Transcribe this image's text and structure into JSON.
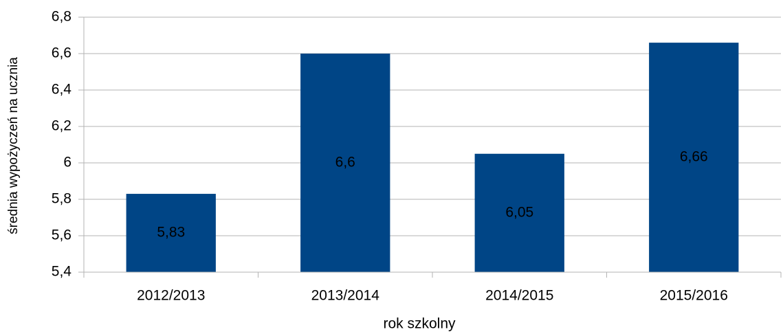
{
  "chart_data": {
    "type": "bar",
    "x_label": "rok szkolny",
    "y_label": "średnia wypożyczeń na ucznia",
    "categories": [
      "2012/2013",
      "2013/2014",
      "2014/2015",
      "2015/2016"
    ],
    "values": [
      5.83,
      6.6,
      6.05,
      6.66
    ],
    "value_labels": [
      "5,83",
      "6,6",
      "6,05",
      "6,66"
    ],
    "color": "#004586",
    "ylim": [
      5.4,
      6.8
    ],
    "yticks": [
      {
        "value": 5.4,
        "label": "5,4"
      },
      {
        "value": 5.6,
        "label": "5,6"
      },
      {
        "value": 5.8,
        "label": "5,8"
      },
      6,
      {
        "value": 6.2,
        "label": "6,2"
      },
      {
        "value": 6.4,
        "label": "6,4"
      },
      {
        "value": 6.6,
        "label": "6,6"
      },
      {
        "value": 6.8,
        "label": "6,8"
      }
    ],
    "grid": true
  }
}
